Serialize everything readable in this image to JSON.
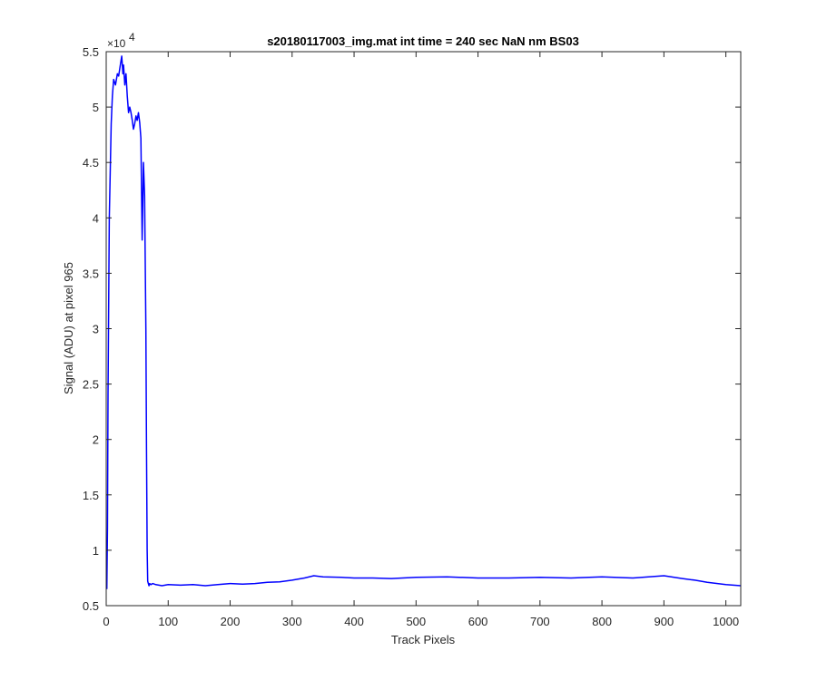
{
  "chart_data": {
    "type": "line",
    "title": "s20180117003_img.mat int time = 240 sec  NaN nm BS03",
    "xlabel": "Track Pixels",
    "ylabel": "Signal (ADU) at pixel 965",
    "xlim": [
      0,
      1024
    ],
    "ylim": [
      5000,
      55000
    ],
    "y_exponent_multiplier": "×10",
    "y_exponent_power": "4",
    "x_ticks": [
      0,
      100,
      200,
      300,
      400,
      500,
      600,
      700,
      800,
      900,
      1000
    ],
    "x_tick_labels": [
      "0",
      "100",
      "200",
      "300",
      "400",
      "500",
      "600",
      "700",
      "800",
      "900",
      "1000"
    ],
    "y_ticks": [
      5000,
      10000,
      15000,
      20000,
      25000,
      30000,
      35000,
      40000,
      45000,
      50000,
      55000
    ],
    "y_tick_labels": [
      "0.5",
      "1",
      "1.5",
      "2",
      "2.5",
      "3",
      "3.5",
      "4",
      "4.5",
      "5",
      "5.5"
    ],
    "grid": false,
    "series": [
      {
        "color": "#0000ff",
        "x": [
          1,
          2,
          3,
          5,
          8,
          10,
          12,
          15,
          18,
          20,
          22,
          25,
          27,
          28,
          30,
          32,
          34,
          36,
          38,
          40,
          42,
          44,
          46,
          48,
          50,
          52,
          54,
          56,
          58,
          60,
          62,
          64,
          65,
          66,
          67,
          68,
          69,
          70,
          72,
          75,
          80,
          90,
          100,
          120,
          140,
          160,
          180,
          200,
          220,
          240,
          260,
          280,
          300,
          320,
          335,
          350,
          380,
          400,
          430,
          460,
          500,
          550,
          600,
          650,
          700,
          750,
          800,
          850,
          900,
          930,
          950,
          970,
          1000,
          1024
        ],
        "y": [
          6500,
          12000,
          24000,
          40000,
          48500,
          51000,
          52500,
          52000,
          53000,
          52800,
          53500,
          54600,
          53000,
          53800,
          52000,
          53000,
          51000,
          49500,
          50000,
          49500,
          48800,
          48000,
          48500,
          49200,
          48800,
          49500,
          48600,
          47200,
          38000,
          45000,
          42000,
          30000,
          19000,
          10000,
          7200,
          7000,
          6800,
          7000,
          6900,
          7000,
          6900,
          6800,
          6900,
          6850,
          6900,
          6800,
          6900,
          7000,
          6950,
          7000,
          7100,
          7150,
          7300,
          7500,
          7700,
          7600,
          7550,
          7500,
          7500,
          7450,
          7550,
          7600,
          7500,
          7500,
          7550,
          7500,
          7600,
          7500,
          7700,
          7450,
          7300,
          7100,
          6900,
          6800
        ]
      }
    ]
  }
}
